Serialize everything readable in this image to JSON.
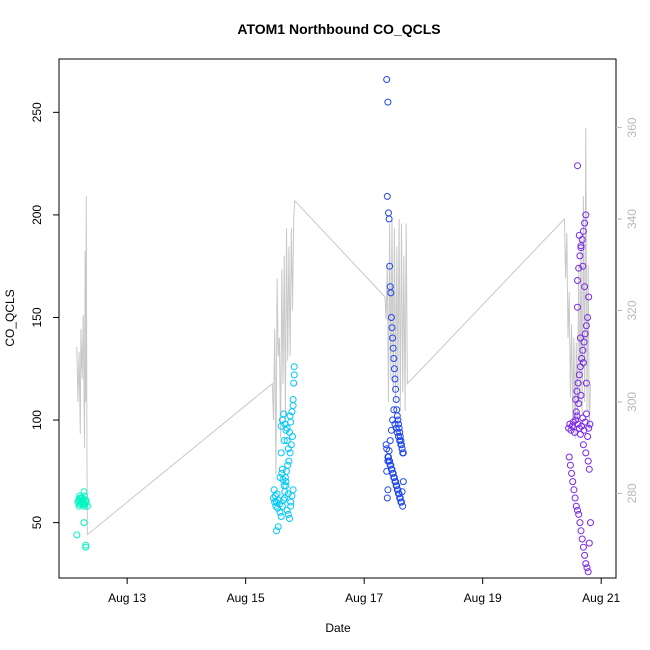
{
  "chart_data": {
    "type": "scatter",
    "title": "ATOM1 Northbound CO_QCLS",
    "xlabel": "Date",
    "ylabel": "CO_QCLS",
    "x_ticks": [
      "Aug 13",
      "Aug 15",
      "Aug 17",
      "Aug 19",
      "Aug 21"
    ],
    "x_tick_days": [
      13,
      15,
      17,
      19,
      21
    ],
    "xlim_days": [
      11.85,
      21.25
    ],
    "ylim": [
      23,
      276
    ],
    "y_ticks": [
      50,
      100,
      150,
      200,
      250
    ],
    "y2lim": [
      261.5,
      375
    ],
    "y2_ticks": [
      280,
      300,
      320,
      340,
      360
    ],
    "grid": false,
    "legend": "none",
    "colors": {
      "day12": "#00f5c0",
      "day15": "#00c8f8",
      "day17": "#1e46f0",
      "day20": "#7a28e8",
      "secondary_line": "#c8c8c8",
      "secondary_axis": "#b8b8b8"
    },
    "series": [
      {
        "group": "day12",
        "color": "#00f5c0",
        "x_days": [
          12.17,
          12.19,
          12.21,
          12.23,
          12.25,
          12.18,
          12.2,
          12.22,
          12.24,
          12.26,
          12.21,
          12.23,
          12.19,
          12.27,
          12.29,
          12.31,
          12.33,
          12.3,
          12.27,
          12.28,
          12.15,
          12.3,
          12.3,
          12.27,
          12.28,
          12.22,
          12.25,
          12.2
        ],
        "values": [
          60,
          61,
          62,
          60,
          59,
          61,
          63,
          60,
          62,
          61,
          59,
          60,
          58,
          59,
          59,
          60,
          58,
          61,
          65,
          63,
          44,
          39,
          38,
          50,
          58,
          62,
          60,
          59
        ]
      },
      {
        "group": "day15",
        "color": "#00c8f8",
        "x_days": [
          15.47,
          15.49,
          15.51,
          15.53,
          15.55,
          15.57,
          15.48,
          15.5,
          15.52,
          15.54,
          15.58,
          15.6,
          15.62,
          15.64,
          15.66,
          15.68,
          15.7,
          15.72,
          15.74,
          15.76,
          15.78,
          15.8,
          15.61,
          15.63,
          15.65,
          15.67,
          15.69,
          15.71,
          15.73,
          15.75,
          15.77,
          15.79,
          15.6,
          15.62,
          15.64,
          15.66,
          15.68,
          15.7,
          15.72,
          15.74,
          15.76,
          15.78,
          15.8,
          15.81,
          15.82,
          15.6,
          15.65,
          15.7,
          15.75,
          15.8,
          15.82,
          15.68,
          15.72,
          15.76,
          15.58,
          15.62,
          15.66,
          15.52,
          15.55
        ],
        "values": [
          62,
          60,
          58,
          64,
          61,
          59,
          66,
          63,
          60,
          57,
          55,
          53,
          58,
          61,
          65,
          70,
          56,
          54,
          52,
          60,
          63,
          66,
          74,
          71,
          68,
          72,
          75,
          78,
          80,
          84,
          88,
          92,
          97,
          100,
          103,
          98,
          95,
          90,
          86,
          94,
          99,
          104,
          110,
          118,
          126,
          84,
          90,
          96,
          102,
          107,
          122,
          68,
          64,
          58,
          72,
          76,
          62,
          46,
          48
        ]
      },
      {
        "group": "day17",
        "color": "#1e46f0",
        "x_days": [
          17.38,
          17.4,
          17.39,
          17.41,
          17.42,
          17.43,
          17.44,
          17.45,
          17.46,
          17.47,
          17.48,
          17.49,
          17.5,
          17.51,
          17.52,
          17.53,
          17.54,
          17.55,
          17.56,
          17.57,
          17.58,
          17.59,
          17.6,
          17.61,
          17.62,
          17.63,
          17.64,
          17.65,
          17.4,
          17.42,
          17.44,
          17.46,
          17.48,
          17.5,
          17.52,
          17.54,
          17.56,
          17.58,
          17.6,
          17.62,
          17.64,
          17.66,
          17.38,
          17.4,
          17.42,
          17.44,
          17.46,
          17.48,
          17.5,
          17.52,
          17.54,
          17.56,
          17.58,
          17.6,
          17.62,
          17.64,
          17.66,
          17.41,
          17.43,
          17.45,
          17.47,
          17.49,
          17.51,
          17.53,
          17.55,
          17.57,
          17.59,
          17.61,
          17.63,
          17.65,
          17.37,
          17.38,
          17.39,
          17.4
        ],
        "values": [
          266,
          255,
          209,
          201,
          198,
          175,
          165,
          162,
          150,
          145,
          140,
          135,
          130,
          125,
          120,
          115,
          110,
          105,
          102,
          100,
          98,
          96,
          94,
          92,
          90,
          88,
          86,
          84,
          82,
          80,
          78,
          76,
          74,
          72,
          70,
          68,
          66,
          64,
          62,
          60,
          65,
          70,
          75,
          80,
          85,
          90,
          95,
          100,
          105,
          98,
          96,
          94,
          92,
          90,
          88,
          86,
          84,
          82,
          80,
          78,
          76,
          74,
          72,
          70,
          68,
          66,
          64,
          62,
          60,
          58,
          88,
          86,
          62,
          66
        ]
      },
      {
        "group": "day20",
        "color": "#7a28e8",
        "x_days": [
          20.45,
          20.47,
          20.49,
          20.51,
          20.53,
          20.55,
          20.57,
          20.59,
          20.61,
          20.63,
          20.65,
          20.67,
          20.69,
          20.71,
          20.73,
          20.75,
          20.77,
          20.79,
          20.81,
          20.46,
          20.48,
          20.5,
          20.52,
          20.54,
          20.56,
          20.58,
          20.6,
          20.62,
          20.64,
          20.66,
          20.68,
          20.7,
          20.72,
          20.74,
          20.76,
          20.78,
          20.8,
          20.82,
          20.57,
          20.59,
          20.61,
          20.63,
          20.65,
          20.67,
          20.69,
          20.71,
          20.73,
          20.75,
          20.77,
          20.79,
          20.6,
          20.62,
          20.64,
          20.66,
          20.68,
          20.7,
          20.72,
          20.74,
          20.6,
          20.63,
          20.66,
          20.69,
          20.72,
          20.6,
          20.65,
          20.7,
          20.75,
          20.58,
          20.62,
          20.66,
          20.7,
          20.74,
          20.78,
          20.8
        ],
        "values": [
          96,
          98,
          95,
          97,
          99,
          94,
          100,
          102,
          98,
          96,
          93,
          97,
          101,
          95,
          99,
          103,
          92,
          96,
          98,
          82,
          78,
          74,
          70,
          66,
          62,
          58,
          56,
          54,
          50,
          46,
          42,
          38,
          34,
          30,
          28,
          26,
          40,
          50,
          110,
          114,
          118,
          122,
          126,
          130,
          134,
          138,
          142,
          146,
          150,
          160,
          168,
          174,
          180,
          184,
          188,
          192,
          196,
          200,
          224,
          190,
          185,
          175,
          165,
          155,
          140,
          128,
          118,
          104,
          108,
          112,
          88,
          84,
          80,
          76
        ]
      }
    ],
    "secondary_series": {
      "name": "",
      "color": "#c8c8c8",
      "x_days": [
        12.15,
        12.17,
        12.19,
        12.21,
        12.22,
        12.24,
        12.26,
        12.28,
        12.29,
        12.3,
        12.31,
        12.32,
        12.33,
        15.45,
        15.47,
        15.49,
        15.51,
        15.53,
        15.55,
        15.57,
        15.59,
        15.61,
        15.63,
        15.65,
        15.67,
        15.69,
        15.71,
        15.73,
        15.75,
        15.77,
        15.79,
        15.81,
        15.83,
        17.35,
        17.37,
        17.39,
        17.41,
        17.43,
        17.45,
        17.47,
        17.49,
        17.51,
        17.53,
        17.55,
        17.57,
        17.59,
        17.61,
        17.63,
        17.65,
        17.67,
        17.69,
        17.71,
        17.73,
        20.38,
        20.4,
        20.42,
        20.44,
        20.46,
        20.48,
        20.5,
        20.52,
        20.54,
        20.56,
        20.58,
        20.6,
        20.62,
        20.64,
        20.66,
        20.68,
        20.7,
        20.72,
        20.74,
        20.76,
        20.78,
        20.8,
        20.82
      ],
      "values": [
        312,
        300,
        311,
        293,
        316,
        305,
        319,
        290,
        333,
        300,
        345,
        290,
        271,
        304,
        296,
        316,
        284,
        327,
        310,
        314,
        292,
        329,
        304,
        332,
        296,
        338,
        309,
        334,
        310,
        338,
        320,
        340,
        344,
        323,
        318,
        330,
        300,
        339,
        305,
        340,
        302,
        338,
        300,
        334,
        303,
        340,
        298,
        339,
        302,
        332,
        298,
        339,
        304,
        340,
        327,
        337,
        314,
        324,
        301,
        317,
        296,
        314,
        292,
        313,
        296,
        330,
        299,
        336,
        297,
        345,
        300,
        360,
        298,
        330,
        294,
        304
      ]
    }
  }
}
